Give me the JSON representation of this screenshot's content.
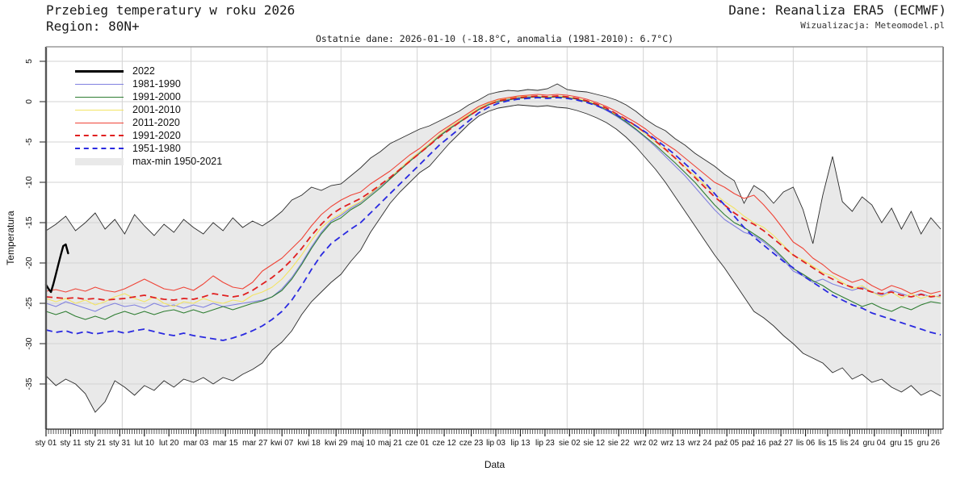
{
  "header": {
    "title": "Przebieg temperatury w roku 2026",
    "region": "Region: 80N+",
    "source": "Dane: Reanaliza ERA5 (ECMWF)",
    "visualization": "Wizualizacja: Meteomodel.pl",
    "subtitle": "Ostatnie dane: 2026-01-10 (-18.8°C, anomalia (1981-2010): 6.7°C)"
  },
  "axes": {
    "x_title": "Data",
    "y_title": "Temperatura"
  },
  "legend": [
    {
      "label": "2022",
      "swatch": "line",
      "color": "#000000",
      "width": 3,
      "style": "solid"
    },
    {
      "label": "1981-1990",
      "swatch": "line",
      "color": "#8080e0",
      "width": 1.6,
      "style": "solid"
    },
    {
      "label": "1991-2000",
      "swatch": "line",
      "color": "#2e7d32",
      "width": 1.6,
      "style": "solid"
    },
    {
      "label": "2001-2010",
      "swatch": "line",
      "color": "#f3e463",
      "width": 1.6,
      "style": "solid"
    },
    {
      "label": "2011-2020",
      "swatch": "line",
      "color": "#ef4437",
      "width": 1.6,
      "style": "solid"
    },
    {
      "label": "1991-2020",
      "swatch": "line",
      "color": "#e02020",
      "width": 2.4,
      "style": "dashed"
    },
    {
      "label": "1951-1980",
      "swatch": "line",
      "color": "#2a2ae0",
      "width": 2.4,
      "style": "dashed"
    },
    {
      "label": "max-min 1950-2021",
      "swatch": "band",
      "color": "#e9e9e9"
    }
  ],
  "chart_data": {
    "type": "line",
    "title": "Przebieg temperatury w roku 2026",
    "xlabel": "Data",
    "ylabel": "Temperatura",
    "x_unit": "day_of_year_2026",
    "x_max": 365,
    "ylim": [
      -40.6,
      6.8
    ],
    "grid": true,
    "legend_position": "upper-left",
    "yticks": [
      5,
      0,
      -5,
      -10,
      -15,
      -20,
      -25,
      -30,
      -35
    ],
    "ytick_labels": [
      "5",
      "0",
      "-5",
      "-10",
      "-15",
      "-20",
      "-25",
      "-30",
      "-35"
    ],
    "xtick_days": [
      0,
      10,
      20,
      30,
      40,
      50,
      61,
      73,
      85,
      96,
      107,
      118,
      129,
      140,
      151,
      162,
      173,
      183,
      193,
      203,
      213,
      223,
      233,
      244,
      255,
      266,
      277,
      288,
      299,
      309,
      318,
      327,
      337,
      348,
      359
    ],
    "xtick_labels": [
      "sty 01",
      "sty 11",
      "sty 21",
      "sty 31",
      "lut 10",
      "lut 20",
      "mar 03",
      "mar 15",
      "mar 27",
      "kwi 07",
      "kwi 18",
      "kwi 29",
      "maj 10",
      "maj 21",
      "cze 01",
      "cze 12",
      "cze 23",
      "lip 03",
      "lip 13",
      "lip 23",
      "sie 02",
      "sie 12",
      "sie 22",
      "wrz 02",
      "wrz 13",
      "wrz 24",
      "paź 05",
      "paź 16",
      "paź 27",
      "lis 06",
      "lis 15",
      "lis 24",
      "gru 04",
      "gru 15",
      "gru 26"
    ],
    "month_grid_days": [
      31,
      59,
      90,
      120,
      151,
      181,
      212,
      243,
      273,
      304,
      334
    ],
    "sample_days": [
      0,
      4,
      8,
      12,
      16,
      20,
      24,
      28,
      32,
      36,
      40,
      44,
      48,
      52,
      56,
      60,
      64,
      68,
      72,
      76,
      80,
      84,
      88,
      92,
      96,
      100,
      104,
      108,
      112,
      116,
      120,
      124,
      128,
      132,
      136,
      140,
      144,
      148,
      152,
      156,
      160,
      164,
      168,
      172,
      176,
      180,
      184,
      188,
      192,
      196,
      200,
      204,
      208,
      212,
      216,
      220,
      224,
      228,
      232,
      236,
      240,
      244,
      248,
      252,
      256,
      260,
      264,
      268,
      272,
      276,
      280,
      284,
      288,
      292,
      296,
      300,
      304,
      308,
      312,
      316,
      320,
      324,
      328,
      332,
      336,
      340,
      344,
      348,
      352,
      356,
      360,
      364
    ],
    "band": {
      "name": "max-min 1950-2021",
      "color": "#e9e9e9",
      "edge_color": "#2b2b2b",
      "max": [
        -16.0,
        -15.2,
        -14.2,
        -16.0,
        -15.0,
        -13.8,
        -15.8,
        -14.6,
        -16.4,
        -14.0,
        -15.4,
        -16.6,
        -15.2,
        -16.2,
        -14.6,
        -15.6,
        -16.4,
        -15.0,
        -16.0,
        -14.4,
        -15.6,
        -14.8,
        -15.4,
        -14.6,
        -13.6,
        -12.2,
        -11.6,
        -10.6,
        -11.0,
        -10.4,
        -10.2,
        -9.2,
        -8.2,
        -7.0,
        -6.2,
        -5.2,
        -4.6,
        -4.0,
        -3.4,
        -3.0,
        -2.4,
        -1.8,
        -1.2,
        -0.4,
        0.2,
        0.9,
        1.2,
        1.4,
        1.3,
        1.5,
        1.4,
        1.6,
        2.2,
        1.5,
        1.3,
        1.2,
        0.9,
        0.6,
        0.2,
        -0.4,
        -1.2,
        -2.2,
        -3.0,
        -3.6,
        -4.6,
        -5.4,
        -6.4,
        -7.2,
        -8.0,
        -9.0,
        -9.8,
        -12.6,
        -10.4,
        -11.2,
        -12.6,
        -11.2,
        -10.6,
        -13.4,
        -17.6,
        -11.6,
        -6.8,
        -12.4,
        -13.6,
        -11.8,
        -12.8,
        -15.0,
        -13.2,
        -15.8,
        -13.6,
        -16.4,
        -14.4,
        -15.8
      ],
      "min": [
        -34.0,
        -35.2,
        -34.4,
        -35.0,
        -36.2,
        -38.5,
        -37.2,
        -34.6,
        -35.4,
        -36.4,
        -35.2,
        -35.8,
        -34.6,
        -35.4,
        -34.4,
        -34.8,
        -34.2,
        -35.0,
        -34.2,
        -34.6,
        -33.8,
        -33.2,
        -32.4,
        -30.8,
        -29.8,
        -28.4,
        -26.4,
        -24.8,
        -23.6,
        -22.4,
        -21.4,
        -19.8,
        -18.4,
        -16.2,
        -14.4,
        -12.6,
        -11.2,
        -10.0,
        -8.8,
        -8.0,
        -6.6,
        -5.2,
        -4.0,
        -2.8,
        -1.8,
        -1.2,
        -0.8,
        -0.6,
        -0.4,
        -0.5,
        -0.6,
        -0.5,
        -0.7,
        -0.8,
        -1.1,
        -1.5,
        -2.0,
        -2.6,
        -3.4,
        -4.4,
        -5.6,
        -7.0,
        -8.4,
        -10.0,
        -11.8,
        -13.6,
        -15.4,
        -17.2,
        -19.0,
        -20.6,
        -22.4,
        -24.2,
        -26.0,
        -26.8,
        -27.8,
        -29.0,
        -30.0,
        -31.2,
        -31.8,
        -32.4,
        -33.6,
        -33.0,
        -34.4,
        -33.8,
        -34.8,
        -34.4,
        -35.4,
        -36.0,
        -35.2,
        -36.4,
        -35.8,
        -36.5
      ]
    },
    "series": [
      {
        "name": "1981-1990",
        "color": "#8080e0",
        "style": "solid",
        "width": 1.1,
        "values": [
          -25.0,
          -25.4,
          -24.8,
          -25.2,
          -25.6,
          -26.0,
          -25.4,
          -25.0,
          -25.4,
          -25.2,
          -25.6,
          -25.0,
          -25.4,
          -25.2,
          -25.6,
          -25.2,
          -25.5,
          -25.0,
          -25.4,
          -25.2,
          -25.0,
          -24.8,
          -24.6,
          -24.2,
          -23.2,
          -21.8,
          -20.0,
          -18.0,
          -16.2,
          -14.8,
          -14.1,
          -13.2,
          -12.5,
          -11.5,
          -10.5,
          -9.5,
          -8.4,
          -7.3,
          -6.3,
          -5.3,
          -4.2,
          -3.3,
          -2.5,
          -1.7,
          -0.9,
          -0.3,
          0.1,
          0.3,
          0.5,
          0.6,
          0.6,
          0.5,
          0.6,
          0.5,
          0.3,
          0.0,
          -0.5,
          -1.1,
          -1.8,
          -2.6,
          -3.5,
          -4.5,
          -5.6,
          -6.8,
          -8.0,
          -9.2,
          -10.6,
          -12.0,
          -13.4,
          -14.6,
          -15.4,
          -16.2,
          -16.6,
          -17.4,
          -18.4,
          -19.6,
          -21.0,
          -21.6,
          -22.4,
          -22.0,
          -22.6,
          -23.0,
          -23.4,
          -23.0,
          -23.6,
          -24.0,
          -23.4,
          -23.8,
          -24.2,
          -23.8,
          -24.2,
          -24.1
        ]
      },
      {
        "name": "1991-2000",
        "color": "#2e7d32",
        "style": "solid",
        "width": 1.1,
        "values": [
          -26.0,
          -26.4,
          -26.0,
          -26.6,
          -27.0,
          -26.6,
          -27.0,
          -26.4,
          -26.0,
          -26.4,
          -26.0,
          -26.4,
          -26.0,
          -25.8,
          -26.2,
          -25.8,
          -26.2,
          -25.8,
          -25.4,
          -25.8,
          -25.4,
          -25.0,
          -24.7,
          -24.2,
          -23.4,
          -22.0,
          -20.2,
          -18.2,
          -16.4,
          -15.0,
          -14.4,
          -13.4,
          -12.7,
          -11.7,
          -10.7,
          -9.6,
          -8.5,
          -7.4,
          -6.4,
          -5.4,
          -4.3,
          -3.4,
          -2.6,
          -1.8,
          -1.0,
          -0.4,
          0.0,
          0.2,
          0.4,
          0.5,
          0.6,
          0.5,
          0.6,
          0.5,
          0.3,
          0.0,
          -0.4,
          -1.0,
          -1.7,
          -2.5,
          -3.4,
          -4.4,
          -5.4,
          -6.5,
          -7.6,
          -8.8,
          -10.0,
          -11.4,
          -12.8,
          -14.0,
          -15.0,
          -15.6,
          -16.4,
          -17.2,
          -18.2,
          -19.4,
          -20.7,
          -21.4,
          -22.2,
          -22.8,
          -23.6,
          -24.2,
          -24.8,
          -25.4,
          -25.0,
          -25.6,
          -26.0,
          -25.4,
          -25.8,
          -25.2,
          -24.8,
          -25.0
        ]
      },
      {
        "name": "2001-2010",
        "color": "#f3e463",
        "style": "solid",
        "width": 1.1,
        "values": [
          -24.4,
          -24.8,
          -24.4,
          -25.0,
          -24.6,
          -25.2,
          -24.8,
          -24.2,
          -23.8,
          -24.4,
          -24.8,
          -24.2,
          -25.0,
          -25.4,
          -24.8,
          -25.0,
          -24.4,
          -24.8,
          -25.0,
          -24.6,
          -24.8,
          -24.0,
          -23.6,
          -23.0,
          -22.0,
          -20.6,
          -19.0,
          -17.2,
          -15.6,
          -14.6,
          -13.9,
          -13.0,
          -12.4,
          -11.4,
          -10.4,
          -9.4,
          -8.3,
          -7.2,
          -6.2,
          -5.2,
          -4.1,
          -3.2,
          -2.4,
          -1.6,
          -0.8,
          -0.2,
          0.2,
          0.4,
          0.6,
          0.7,
          0.7,
          0.6,
          0.7,
          0.6,
          0.4,
          0.1,
          -0.3,
          -0.9,
          -1.6,
          -2.3,
          -3.1,
          -4.0,
          -5.0,
          -6.0,
          -7.0,
          -8.1,
          -9.2,
          -10.3,
          -11.4,
          -12.4,
          -13.2,
          -14.2,
          -15.0,
          -15.6,
          -16.6,
          -17.8,
          -19.1,
          -19.6,
          -20.4,
          -21.2,
          -21.6,
          -22.4,
          -23.2,
          -22.8,
          -23.6,
          -24.2,
          -23.6,
          -24.4,
          -23.8,
          -24.4,
          -24.0,
          -24.3
        ]
      },
      {
        "name": "2011-2020",
        "color": "#ef4437",
        "style": "solid",
        "width": 1.1,
        "values": [
          -23.5,
          -23.3,
          -23.6,
          -23.2,
          -23.5,
          -23.0,
          -23.4,
          -23.6,
          -23.2,
          -22.6,
          -22.0,
          -22.6,
          -23.2,
          -23.4,
          -23.0,
          -23.4,
          -22.6,
          -21.6,
          -22.4,
          -23.0,
          -23.2,
          -22.4,
          -21.0,
          -20.2,
          -19.4,
          -18.2,
          -17.0,
          -15.4,
          -14.0,
          -13.0,
          -12.2,
          -11.6,
          -11.2,
          -10.2,
          -9.4,
          -8.6,
          -7.6,
          -6.6,
          -5.8,
          -4.8,
          -3.8,
          -3.0,
          -2.2,
          -1.4,
          -0.6,
          -0.1,
          0.3,
          0.5,
          0.7,
          0.8,
          0.9,
          0.8,
          0.9,
          0.8,
          0.6,
          0.3,
          -0.1,
          -0.6,
          -1.2,
          -1.9,
          -2.6,
          -3.4,
          -4.4,
          -5.2,
          -6.0,
          -7.0,
          -8.0,
          -9.0,
          -10.0,
          -10.6,
          -11.4,
          -12.0,
          -11.6,
          -12.8,
          -14.2,
          -15.8,
          -17.4,
          -18.2,
          -19.4,
          -20.2,
          -21.2,
          -21.8,
          -22.4,
          -22.0,
          -22.8,
          -23.4,
          -22.8,
          -23.2,
          -23.8,
          -23.4,
          -23.8,
          -23.5
        ]
      },
      {
        "name": "1991-2020",
        "color": "#e02020",
        "style": "dashed",
        "width": 1.8,
        "values": [
          -24.2,
          -24.3,
          -24.4,
          -24.3,
          -24.5,
          -24.4,
          -24.6,
          -24.5,
          -24.4,
          -24.2,
          -24.0,
          -24.3,
          -24.5,
          -24.6,
          -24.4,
          -24.5,
          -24.2,
          -23.8,
          -24.0,
          -24.2,
          -24.0,
          -23.4,
          -22.6,
          -21.8,
          -20.8,
          -19.6,
          -18.2,
          -16.6,
          -15.2,
          -14.0,
          -13.2,
          -12.6,
          -12.0,
          -11.2,
          -10.3,
          -9.4,
          -8.4,
          -7.4,
          -6.4,
          -5.4,
          -4.4,
          -3.5,
          -2.6,
          -1.8,
          -1.0,
          -0.4,
          0.1,
          0.3,
          0.5,
          0.6,
          0.7,
          0.6,
          0.7,
          0.6,
          0.4,
          0.1,
          -0.3,
          -0.8,
          -1.5,
          -2.2,
          -3.0,
          -3.9,
          -4.9,
          -5.9,
          -7.0,
          -8.2,
          -9.4,
          -10.6,
          -11.8,
          -12.8,
          -13.8,
          -14.6,
          -15.2,
          -16.0,
          -17.0,
          -18.0,
          -19.0,
          -19.8,
          -20.6,
          -21.4,
          -22.0,
          -22.6,
          -23.0,
          -23.2,
          -23.6,
          -23.8,
          -23.6,
          -24.0,
          -24.2,
          -23.9,
          -24.2,
          -24.0
        ]
      },
      {
        "name": "1951-1980",
        "color": "#2a2ae0",
        "style": "dashed",
        "width": 1.8,
        "values": [
          -28.3,
          -28.6,
          -28.4,
          -28.8,
          -28.5,
          -28.8,
          -28.6,
          -28.4,
          -28.7,
          -28.4,
          -28.2,
          -28.5,
          -28.8,
          -29.0,
          -28.7,
          -29.0,
          -29.2,
          -29.4,
          -29.6,
          -29.3,
          -28.9,
          -28.4,
          -27.8,
          -27.0,
          -26.0,
          -24.6,
          -22.8,
          -20.8,
          -19.0,
          -17.6,
          -16.7,
          -15.8,
          -15.0,
          -13.8,
          -12.6,
          -11.4,
          -10.2,
          -9.0,
          -7.8,
          -6.6,
          -5.4,
          -4.4,
          -3.4,
          -2.4,
          -1.4,
          -0.7,
          -0.2,
          0.1,
          0.3,
          0.4,
          0.5,
          0.4,
          0.5,
          0.4,
          0.2,
          -0.1,
          -0.5,
          -1.0,
          -1.6,
          -2.3,
          -3.0,
          -3.8,
          -4.7,
          -5.6,
          -6.6,
          -7.7,
          -8.8,
          -10.0,
          -11.4,
          -12.8,
          -14.2,
          -15.6,
          -16.8,
          -17.8,
          -18.8,
          -19.8,
          -20.6,
          -21.6,
          -22.4,
          -23.2,
          -24.0,
          -24.6,
          -25.2,
          -25.6,
          -26.2,
          -26.6,
          -27.0,
          -27.4,
          -27.8,
          -28.2,
          -28.6,
          -28.9
        ]
      }
    ],
    "current_year": {
      "name": "2022",
      "color": "#000000",
      "width": 2.4,
      "days": [
        0,
        1,
        2,
        3,
        4,
        5,
        6,
        7,
        8,
        9
      ],
      "values": [
        -22.7,
        -23.2,
        -23.6,
        -22.6,
        -21.4,
        -20.2,
        -19.0,
        -17.9,
        -17.7,
        -18.8
      ],
      "last_date": "2026-01-10",
      "last_value_c": -18.8,
      "anomaly_1981_2010_c": 6.7
    }
  }
}
